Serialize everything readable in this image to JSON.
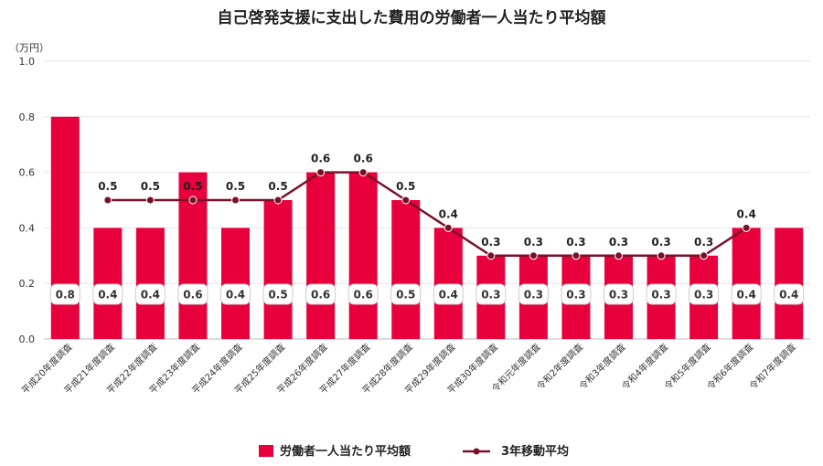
{
  "chart_data": {
    "type": "bar",
    "title": "自己啓発支援に支出した費用の労働者一人当たり平均額",
    "unit_label": "（万円）",
    "categories": [
      "平成20年度調査",
      "平成21年度調査",
      "平成22年度調査",
      "平成23年度調査",
      "平成24年度調査",
      "平成25年度調査",
      "平成26年度調査",
      "平成27年度調査",
      "平成28年度調査",
      "平成29年度調査",
      "平成30年度調査",
      "令和元年度調査",
      "令和2年度調査",
      "令和3年度調査",
      "令和4年度調査",
      "令和5年度調査",
      "令和6年度調査",
      "令和7年度調査"
    ],
    "yticks": [
      "0.0",
      "0.2",
      "0.4",
      "0.6",
      "0.8",
      "1.0"
    ],
    "ylim": [
      0,
      1.0
    ],
    "series": [
      {
        "name": "労働者一人当たり平均額",
        "kind": "bar",
        "color": "#e8003d",
        "values": [
          0.8,
          0.4,
          0.4,
          0.6,
          0.4,
          0.5,
          0.6,
          0.6,
          0.5,
          0.4,
          0.3,
          0.3,
          0.3,
          0.3,
          0.3,
          0.3,
          0.4,
          0.4
        ],
        "labels": [
          "0.8",
          "0.4",
          "0.4",
          "0.6",
          "0.4",
          "0.5",
          "0.6",
          "0.6",
          "0.5",
          "0.4",
          "0.3",
          "0.3",
          "0.3",
          "0.3",
          "0.3",
          "0.3",
          "0.4",
          "0.4"
        ]
      },
      {
        "name": "3年移動平均",
        "kind": "line",
        "color": "#7a1026",
        "values": [
          null,
          0.5,
          0.5,
          0.5,
          0.5,
          0.5,
          0.6,
          0.6,
          0.5,
          0.4,
          0.3,
          0.3,
          0.3,
          0.3,
          0.3,
          0.3,
          0.4,
          null
        ],
        "labels": [
          null,
          "0.5",
          "0.5",
          "0.5",
          "0.5",
          "0.5",
          "0.6",
          "0.6",
          "0.5",
          "0.4",
          "0.3",
          "0.3",
          "0.3",
          "0.3",
          "0.3",
          "0.3",
          "0.4",
          null
        ]
      }
    ],
    "grid": true,
    "legend_position": "bottom"
  }
}
